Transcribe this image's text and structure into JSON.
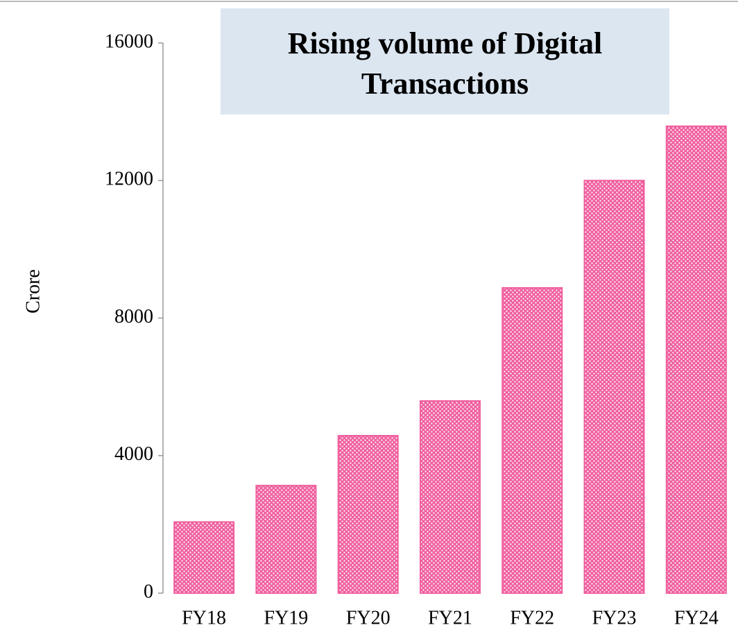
{
  "chart_data": {
    "type": "bar",
    "title": "Rising volume of Digital Transactions",
    "ylabel": "Crore",
    "categories": [
      "FY18",
      "FY19",
      "FY20",
      "FY21",
      "FY22",
      "FY23",
      "FY24"
    ],
    "values": [
      2070,
      3130,
      4580,
      5590,
      8880,
      12000,
      13580
    ],
    "color": "#f0609e",
    "ylim": [
      0,
      16000
    ],
    "yticks": [
      0,
      4000,
      8000,
      12000,
      16000
    ],
    "grid": false
  }
}
